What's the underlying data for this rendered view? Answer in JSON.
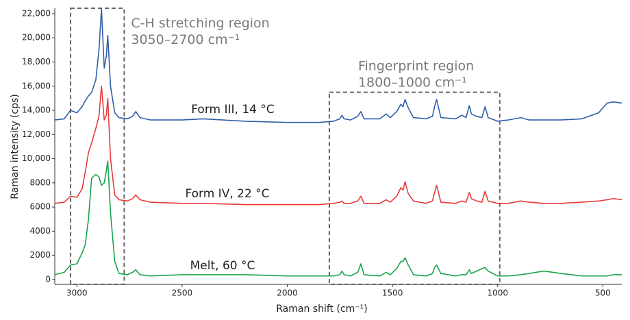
{
  "chart_data": {
    "type": "line",
    "xlabel": "Raman shift (cm⁻¹)",
    "ylabel": "Raman intensity (cps)",
    "xlim": [
      3105,
      410
    ],
    "ylim": [
      -400,
      22450
    ],
    "xticks": [
      3000,
      2500,
      2000,
      1500,
      1000,
      500
    ],
    "yticks": [
      0,
      2000,
      4000,
      6000,
      8000,
      {
        "value": 10000,
        "label": "10,000"
      },
      {
        "value": 12000,
        "label": "12,000"
      },
      {
        "value": 14000,
        "label": "14,000"
      },
      {
        "value": 16000,
        "label": "16,000"
      },
      {
        "value": 18000,
        "label": "18,000"
      },
      {
        "value": 20000,
        "label": "20,000"
      },
      {
        "value": 22000,
        "label": "22,000"
      }
    ],
    "grid": false,
    "x": [
      3105,
      3060,
      3030,
      3000,
      2975,
      2960,
      2945,
      2930,
      2910,
      2895,
      2883,
      2870,
      2860,
      2853,
      2840,
      2820,
      2800,
      2760,
      2735,
      2720,
      2700,
      2650,
      2500,
      2400,
      2200,
      2000,
      1850,
      1780,
      1750,
      1740,
      1730,
      1700,
      1665,
      1650,
      1635,
      1560,
      1530,
      1510,
      1480,
      1460,
      1450,
      1440,
      1425,
      1400,
      1340,
      1310,
      1300,
      1290,
      1270,
      1200,
      1170,
      1150,
      1135,
      1125,
      1100,
      1075,
      1060,
      1045,
      1000,
      950,
      890,
      850,
      780,
      700,
      600,
      520,
      480,
      450,
      410
    ],
    "series": [
      {
        "name": "Form III, 14 °C",
        "color": "#2f5ea8",
        "values": [
          13200,
          13300,
          14000,
          13800,
          14300,
          14800,
          15200,
          15500,
          16500,
          19000,
          22400,
          17500,
          18500,
          20200,
          16000,
          13800,
          13400,
          13300,
          13500,
          13900,
          13400,
          13200,
          13200,
          13300,
          13100,
          13000,
          13000,
          13100,
          13300,
          13600,
          13300,
          13200,
          13500,
          13900,
          13300,
          13300,
          13700,
          13400,
          13900,
          14500,
          14300,
          14900,
          14200,
          13400,
          13300,
          13500,
          14300,
          14900,
          13400,
          13300,
          13600,
          13400,
          14400,
          13700,
          13500,
          13400,
          14300,
          13400,
          13100,
          13200,
          13400,
          13200,
          13200,
          13200,
          13300,
          13800,
          14600,
          14700,
          14600
        ]
      },
      {
        "name": "Form IV, 22 °C",
        "color": "#e8393a",
        "values": [
          6300,
          6400,
          6900,
          6800,
          7500,
          8900,
          10500,
          11300,
          12500,
          13500,
          16000,
          13200,
          13600,
          15000,
          10000,
          7000,
          6600,
          6500,
          6700,
          7000,
          6600,
          6400,
          6300,
          6300,
          6200,
          6200,
          6200,
          6300,
          6400,
          6500,
          6300,
          6300,
          6500,
          6900,
          6300,
          6300,
          6600,
          6400,
          6900,
          7600,
          7400,
          8100,
          7100,
          6500,
          6300,
          6500,
          7200,
          7800,
          6400,
          6300,
          6500,
          6400,
          7200,
          6700,
          6500,
          6400,
          7300,
          6500,
          6300,
          6300,
          6500,
          6400,
          6300,
          6300,
          6400,
          6500,
          6600,
          6700,
          6600
        ]
      },
      {
        "name": "Melt, 60 °C",
        "color": "#1aa34a",
        "values": [
          400,
          600,
          1200,
          1300,
          2200,
          2900,
          5000,
          8400,
          8700,
          8500,
          7800,
          8000,
          9000,
          9800,
          5500,
          1500,
          500,
          400,
          600,
          800,
          400,
          300,
          400,
          400,
          400,
          300,
          300,
          300,
          400,
          700,
          400,
          300,
          600,
          1300,
          400,
          300,
          600,
          400,
          900,
          1500,
          1500,
          1800,
          1200,
          400,
          300,
          500,
          1000,
          1200,
          500,
          300,
          400,
          400,
          800,
          500,
          700,
          900,
          1000,
          700,
          300,
          300,
          400,
          500,
          700,
          500,
          300,
          300,
          300,
          400,
          400
        ]
      }
    ],
    "regions": [
      {
        "title": "C-H stretching region",
        "subtitle": "3050–2700 cm⁻¹",
        "x": [
          3030,
          2775
        ],
        "top": 22450
      },
      {
        "title": "Fingerprint region",
        "subtitle": "1800–1000 cm⁻¹",
        "x": [
          1800,
          990
        ],
        "top": 15500
      }
    ]
  }
}
